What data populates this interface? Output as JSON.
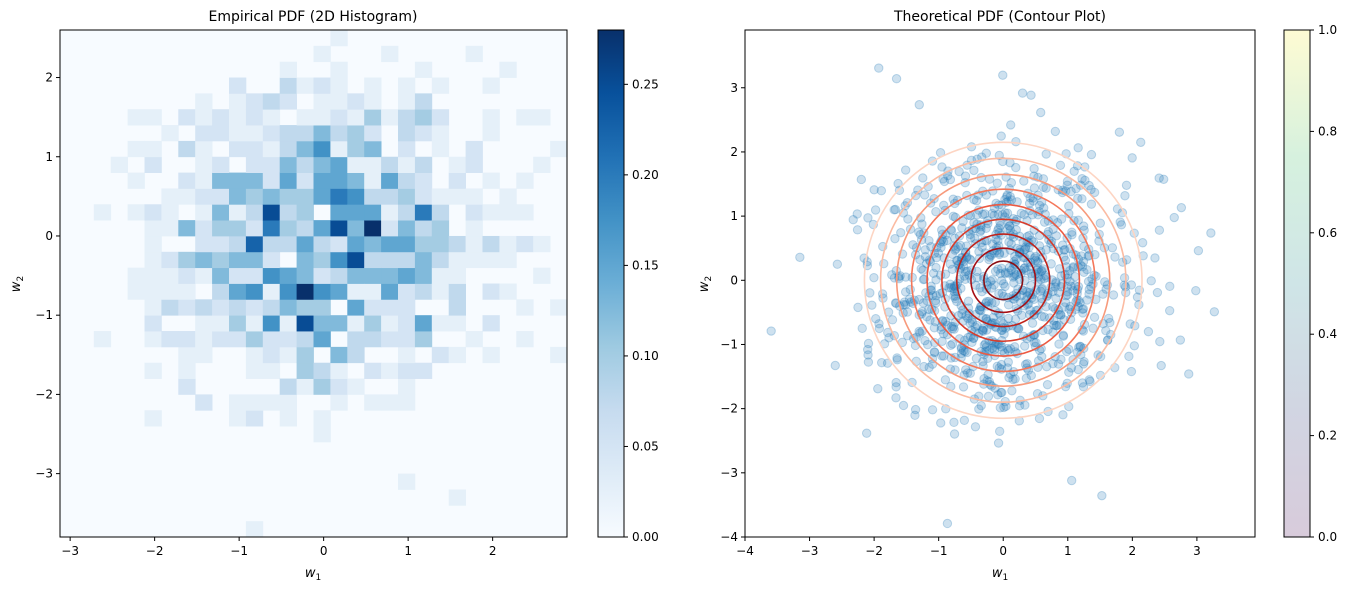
{
  "chart_data": [
    {
      "type": "heatmap",
      "title": "Empirical PDF (2D Histogram)",
      "xlabel": "w",
      "xlabel_sub": "1",
      "ylabel": "w",
      "ylabel_sub": "2",
      "xlim": [
        -3.12,
        2.88
      ],
      "ylim": [
        -3.8,
        2.6
      ],
      "xticks": [
        -3,
        -2,
        -1,
        0,
        1,
        2
      ],
      "yticks": [
        -3,
        -2,
        -1,
        0,
        1,
        2
      ],
      "bins": [
        30,
        32
      ],
      "colormap": "Blues",
      "colorbar": {
        "min": 0,
        "max": 0.28,
        "ticks": [
          0.0,
          0.05,
          0.1,
          0.15,
          0.2,
          0.25
        ]
      },
      "density_model": {
        "distribution": "standard normal 2D",
        "seed": 7,
        "samples": 1000
      }
    },
    {
      "type": "scatter",
      "title": "Theoretical PDF (Contour Plot)",
      "xlabel": "w",
      "xlabel_sub": "1",
      "ylabel": "w",
      "ylabel_sub": "2",
      "xlim": [
        -4,
        3.9
      ],
      "ylim": [
        -4,
        3.9
      ],
      "xticks": [
        -4,
        -3,
        -2,
        -1,
        0,
        1,
        2,
        3
      ],
      "yticks": [
        -4,
        -3,
        -2,
        -1,
        0,
        1,
        2,
        3
      ],
      "scatter": {
        "color": "#1f77b4",
        "alpha": 0.22,
        "samples": 1000,
        "seed": 7
      },
      "contours": {
        "colormap": "Reds",
        "center": [
          0,
          0
        ],
        "radii": [
          0.3,
          0.5,
          0.72,
          0.95,
          1.18,
          1.42,
          1.65,
          1.9,
          2.15
        ],
        "colors": [
          "#8b0f14",
          "#a50f15",
          "#c0231b",
          "#d83c2b",
          "#ec5a42",
          "#f4775a",
          "#f79a7c",
          "#fbbba2",
          "#fdd5c3"
        ]
      },
      "colorbar": {
        "min": 0,
        "max": 1,
        "ticks": [
          0.0,
          0.2,
          0.4,
          0.6,
          0.8,
          1.0
        ],
        "colormap": "viridis",
        "alpha": 0.2
      }
    }
  ]
}
